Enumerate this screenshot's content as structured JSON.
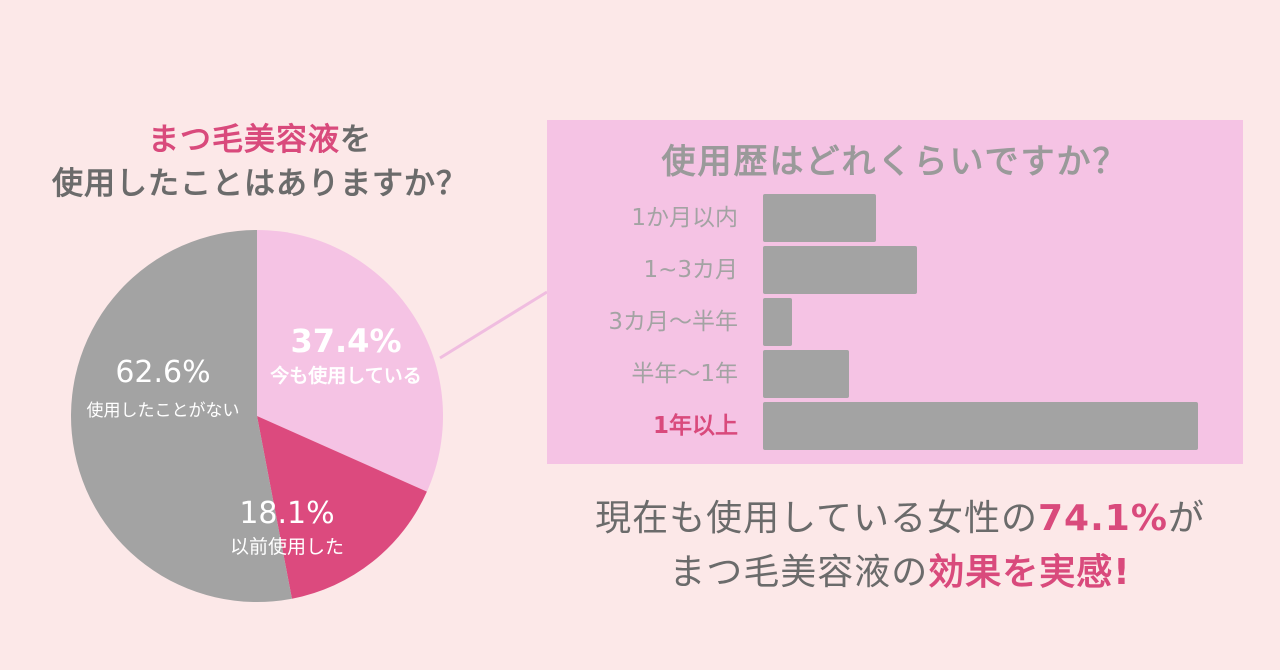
{
  "question": {
    "line1_accent": "まつ毛美容液",
    "line1_rest": "を",
    "line2": "使用したことはありますか？"
  },
  "colors": {
    "background": "#fce8e8",
    "light_pink": "#f5c3e4",
    "deep_pink": "#dc4a7e",
    "gray": "#a3a3a3",
    "text_gray": "#6b6b6b",
    "accent": "#d94a7c"
  },
  "chart_data": [
    {
      "type": "pie",
      "slices": [
        {
          "name": "今も使用している",
          "value": 37.4,
          "label": "37.4%",
          "color": "#f5c3e4"
        },
        {
          "name": "以前使用した",
          "value": 18.1,
          "label": "18.1%",
          "color": "#dc4a7e"
        },
        {
          "name": "使用したことがない",
          "value": 62.6,
          "label": "62.6%",
          "color": "#a3a3a3"
        }
      ]
    },
    {
      "type": "bar",
      "orientation": "horizontal",
      "title": "使用歴はどれくらいですか？",
      "categories": [
        "1か月以内",
        "1~3カ月",
        "3カ月～半年",
        "半年～1年",
        "1年以上"
      ],
      "values": [
        8.5,
        11.6,
        2.2,
        6.5,
        32.8
      ],
      "highlight": "1年以上",
      "xlim": [
        0,
        35
      ]
    }
  ],
  "conclusion": {
    "line1_pre": "現在も使用している女性の",
    "line1_accent": "74.1%",
    "line1_post": "が",
    "line2_pre": "まつ毛美容液の",
    "line2_accent": "効果を実感!"
  }
}
